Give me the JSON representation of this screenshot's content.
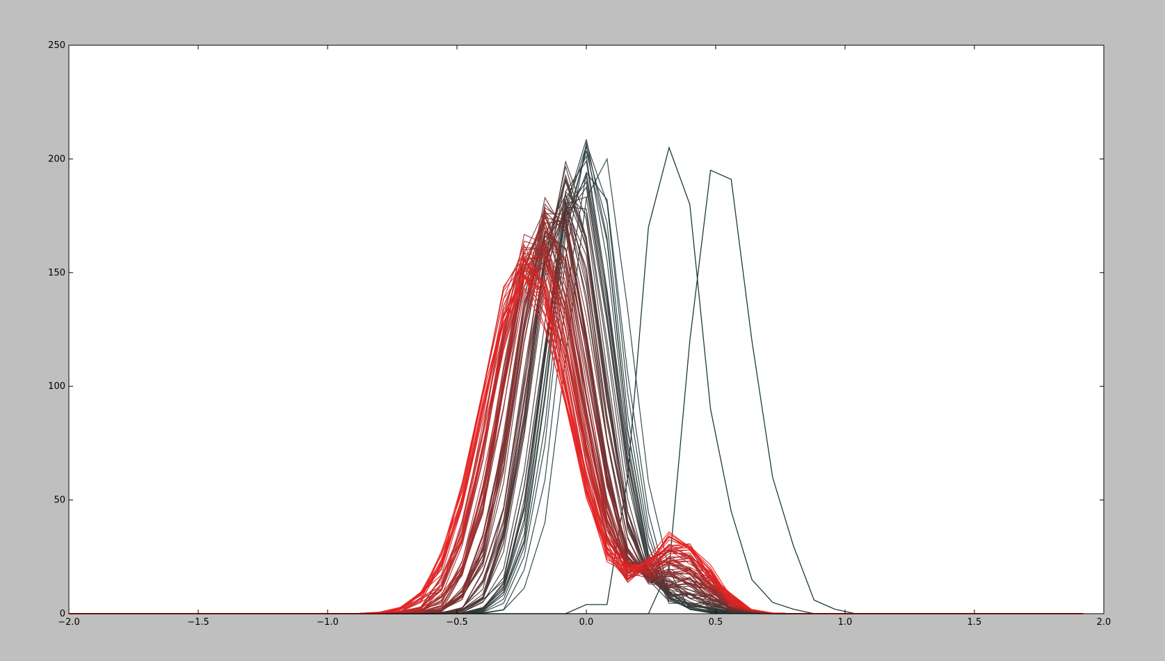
{
  "chart_data": {
    "type": "line",
    "title": "",
    "xlabel": "",
    "ylabel": "",
    "xlim": [
      -2.0,
      2.0
    ],
    "ylim": [
      0,
      250
    ],
    "grid": false,
    "legend": "none",
    "x_ticks": [
      -2.0,
      -1.5,
      -1.0,
      -0.5,
      0.0,
      0.5,
      1.0,
      1.5,
      2.0
    ],
    "x_tick_labels": [
      "−2.0",
      "−1.5",
      "−1.0",
      "−0.5",
      "0.0",
      "0.5",
      "1.0",
      "1.5",
      "2.0"
    ],
    "y_ticks": [
      0,
      50,
      100,
      150,
      200,
      250
    ],
    "y_tick_labels": [
      "0",
      "50",
      "100",
      "150",
      "200",
      "250"
    ],
    "colors": {
      "start": "#1c3a3a",
      "end": "#ee2222",
      "figure_background": "#bfbfbf",
      "plot_background": "#ffffff"
    },
    "description_of_series": "~100 histogram curves evolving from dark teal to red; values in data units",
    "x": [
      -2.0,
      -1.92,
      -1.84,
      -1.76,
      -1.68,
      -1.6,
      -1.52,
      -1.44,
      -1.36,
      -1.28,
      -1.2,
      -1.12,
      -1.04,
      -0.96,
      -0.88,
      -0.8,
      -0.72,
      -0.64,
      -0.56,
      -0.48,
      -0.4,
      -0.32,
      -0.24,
      -0.16,
      -0.08,
      0.0,
      0.08,
      0.16,
      0.24,
      0.32,
      0.4,
      0.48,
      0.56,
      0.64,
      0.72,
      0.8,
      0.88,
      0.96,
      1.04,
      1.12,
      1.2,
      1.28,
      1.36,
      1.44,
      1.52,
      1.6,
      1.68,
      1.76,
      1.84,
      1.92
    ],
    "series": [
      {
        "values": [
          0,
          0,
          0,
          0,
          0,
          0,
          0,
          0,
          0,
          0,
          0,
          0,
          0,
          0,
          0,
          0,
          0,
          0,
          0,
          0,
          0,
          0,
          0,
          0,
          0,
          4,
          4,
          60,
          170,
          205,
          180,
          90,
          45,
          15,
          5,
          2,
          0,
          0,
          0,
          0,
          0,
          0,
          0,
          0,
          0,
          0,
          0,
          0,
          0,
          0
        ]
      },
      {
        "values": [
          0,
          0,
          0,
          0,
          0,
          0,
          0,
          0,
          0,
          0,
          0,
          0,
          0,
          0,
          0,
          0,
          0,
          0,
          0,
          0,
          0,
          0,
          0,
          0,
          0,
          0,
          0,
          0,
          0,
          20,
          120,
          195,
          191,
          120,
          60,
          30,
          6,
          2,
          0,
          0,
          0,
          0,
          0,
          0,
          0,
          0,
          0,
          0,
          0,
          0
        ]
      },
      {
        "values": [
          0,
          0,
          0,
          0,
          0,
          0,
          0,
          0,
          0,
          0,
          0,
          0,
          0,
          0,
          0,
          0,
          0,
          0,
          0,
          0,
          0,
          0,
          0,
          0,
          0,
          0,
          0,
          0,
          0,
          0,
          0,
          0,
          0,
          0,
          0,
          0,
          0,
          0,
          0,
          0,
          0,
          0,
          0,
          0,
          0,
          0,
          0,
          0,
          0,
          0
        ]
      },
      {
        "values": [
          0,
          0,
          0,
          0,
          0,
          0,
          0,
          0,
          0,
          0,
          0,
          0,
          0,
          0,
          0,
          0,
          0,
          0,
          0,
          0,
          0,
          0,
          0,
          0,
          0,
          0,
          0,
          0,
          0,
          0,
          0,
          0,
          0,
          0,
          0,
          0,
          0,
          0,
          0,
          0,
          0,
          0,
          0,
          0,
          0,
          0,
          0,
          0,
          0,
          0
        ]
      }
    ]
  }
}
